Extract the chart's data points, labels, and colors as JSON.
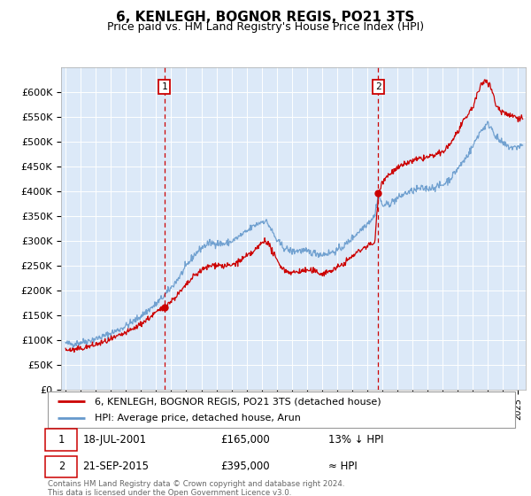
{
  "title": "6, KENLEGH, BOGNOR REGIS, PO21 3TS",
  "subtitle": "Price paid vs. HM Land Registry's House Price Index (HPI)",
  "ylabel_ticks": [
    "£0",
    "£50K",
    "£100K",
    "£150K",
    "£200K",
    "£250K",
    "£300K",
    "£350K",
    "£400K",
    "£450K",
    "£500K",
    "£550K",
    "£600K"
  ],
  "ytick_values": [
    0,
    50000,
    100000,
    150000,
    200000,
    250000,
    300000,
    350000,
    400000,
    450000,
    500000,
    550000,
    600000
  ],
  "ylim": [
    0,
    650000
  ],
  "xlim_start": 1994.7,
  "xlim_end": 2025.5,
  "background_color": "#dce9f8",
  "grid_color": "#ffffff",
  "sale1_x": 2001.54,
  "sale1_y": 165000,
  "sale1_label": "1",
  "sale1_date": "18-JUL-2001",
  "sale1_price": "£165,000",
  "sale1_hpi": "13% ↓ HPI",
  "sale2_x": 2015.73,
  "sale2_y": 395000,
  "sale2_label": "2",
  "sale2_date": "21-SEP-2015",
  "sale2_price": "£395,000",
  "sale2_hpi": "≈ HPI",
  "line_color_sale": "#cc0000",
  "line_color_hpi": "#6699cc",
  "legend_sale_label": "6, KENLEGH, BOGNOR REGIS, PO21 3TS (detached house)",
  "legend_hpi_label": "HPI: Average price, detached house, Arun",
  "footnote": "Contains HM Land Registry data © Crown copyright and database right 2024.\nThis data is licensed under the Open Government Licence v3.0.",
  "title_fontsize": 11,
  "subtitle_fontsize": 9,
  "blue_pts": [
    [
      1995.0,
      93000
    ],
    [
      1995.5,
      91000
    ],
    [
      1996.0,
      95000
    ],
    [
      1996.5,
      98000
    ],
    [
      1997.0,
      102000
    ],
    [
      1997.5,
      107000
    ],
    [
      1998.0,
      113000
    ],
    [
      1998.5,
      120000
    ],
    [
      1999.0,
      128000
    ],
    [
      1999.5,
      137000
    ],
    [
      2000.0,
      148000
    ],
    [
      2000.5,
      160000
    ],
    [
      2001.0,
      172000
    ],
    [
      2001.54,
      189000
    ],
    [
      2002.0,
      205000
    ],
    [
      2002.5,
      225000
    ],
    [
      2003.0,
      248000
    ],
    [
      2003.5,
      270000
    ],
    [
      2004.0,
      285000
    ],
    [
      2004.5,
      295000
    ],
    [
      2005.0,
      295000
    ],
    [
      2005.5,
      293000
    ],
    [
      2006.0,
      298000
    ],
    [
      2006.5,
      308000
    ],
    [
      2007.0,
      318000
    ],
    [
      2007.5,
      330000
    ],
    [
      2008.0,
      338000
    ],
    [
      2008.25,
      340000
    ],
    [
      2008.5,
      330000
    ],
    [
      2009.0,
      300000
    ],
    [
      2009.5,
      285000
    ],
    [
      2010.0,
      278000
    ],
    [
      2010.5,
      280000
    ],
    [
      2011.0,
      278000
    ],
    [
      2011.5,
      275000
    ],
    [
      2012.0,
      272000
    ],
    [
      2012.5,
      275000
    ],
    [
      2013.0,
      280000
    ],
    [
      2013.5,
      290000
    ],
    [
      2014.0,
      305000
    ],
    [
      2014.5,
      320000
    ],
    [
      2015.0,
      335000
    ],
    [
      2015.5,
      350000
    ],
    [
      2015.73,
      395000
    ],
    [
      2016.0,
      370000
    ],
    [
      2016.5,
      375000
    ],
    [
      2017.0,
      385000
    ],
    [
      2017.5,
      395000
    ],
    [
      2018.0,
      400000
    ],
    [
      2018.5,
      405000
    ],
    [
      2019.0,
      405000
    ],
    [
      2019.5,
      408000
    ],
    [
      2020.0,
      412000
    ],
    [
      2020.5,
      425000
    ],
    [
      2021.0,
      445000
    ],
    [
      2021.5,
      465000
    ],
    [
      2022.0,
      490000
    ],
    [
      2022.3,
      510000
    ],
    [
      2022.5,
      520000
    ],
    [
      2022.8,
      530000
    ],
    [
      2023.0,
      535000
    ],
    [
      2023.3,
      525000
    ],
    [
      2023.5,
      510000
    ],
    [
      2023.8,
      500000
    ],
    [
      2024.0,
      495000
    ],
    [
      2024.3,
      490000
    ],
    [
      2024.5,
      488000
    ],
    [
      2024.8,
      487000
    ],
    [
      2025.0,
      490000
    ],
    [
      2025.3,
      492000
    ]
  ],
  "red_pts": [
    [
      1995.0,
      80000
    ],
    [
      1995.5,
      79000
    ],
    [
      1996.0,
      82000
    ],
    [
      1996.5,
      86000
    ],
    [
      1997.0,
      90000
    ],
    [
      1997.5,
      95000
    ],
    [
      1998.0,
      100000
    ],
    [
      1998.5,
      107000
    ],
    [
      1999.0,
      114000
    ],
    [
      1999.5,
      122000
    ],
    [
      2000.0,
      132000
    ],
    [
      2000.5,
      143000
    ],
    [
      2001.0,
      155000
    ],
    [
      2001.54,
      165000
    ],
    [
      2002.0,
      178000
    ],
    [
      2002.5,
      193000
    ],
    [
      2003.0,
      210000
    ],
    [
      2003.5,
      228000
    ],
    [
      2004.0,
      240000
    ],
    [
      2004.5,
      248000
    ],
    [
      2005.0,
      252000
    ],
    [
      2005.5,
      248000
    ],
    [
      2006.0,
      250000
    ],
    [
      2006.5,
      258000
    ],
    [
      2007.0,
      268000
    ],
    [
      2007.5,
      278000
    ],
    [
      2008.0,
      295000
    ],
    [
      2008.25,
      302000
    ],
    [
      2008.5,
      290000
    ],
    [
      2009.0,
      260000
    ],
    [
      2009.5,
      240000
    ],
    [
      2010.0,
      235000
    ],
    [
      2010.5,
      238000
    ],
    [
      2011.0,
      240000
    ],
    [
      2011.5,
      238000
    ],
    [
      2012.0,
      233000
    ],
    [
      2012.5,
      238000
    ],
    [
      2013.0,
      245000
    ],
    [
      2013.5,
      255000
    ],
    [
      2014.0,
      268000
    ],
    [
      2014.5,
      280000
    ],
    [
      2015.0,
      290000
    ],
    [
      2015.5,
      295000
    ],
    [
      2015.73,
      395000
    ],
    [
      2016.0,
      420000
    ],
    [
      2016.5,
      435000
    ],
    [
      2017.0,
      445000
    ],
    [
      2017.5,
      455000
    ],
    [
      2018.0,
      460000
    ],
    [
      2018.5,
      465000
    ],
    [
      2019.0,
      468000
    ],
    [
      2019.5,
      472000
    ],
    [
      2020.0,
      478000
    ],
    [
      2020.5,
      495000
    ],
    [
      2021.0,
      520000
    ],
    [
      2021.5,
      545000
    ],
    [
      2022.0,
      570000
    ],
    [
      2022.3,
      595000
    ],
    [
      2022.5,
      610000
    ],
    [
      2022.8,
      625000
    ],
    [
      2023.0,
      620000
    ],
    [
      2023.3,
      600000
    ],
    [
      2023.5,
      575000
    ],
    [
      2023.8,
      562000
    ],
    [
      2024.0,
      560000
    ],
    [
      2024.3,
      555000
    ],
    [
      2024.5,
      553000
    ],
    [
      2024.8,
      550000
    ],
    [
      2025.0,
      548000
    ],
    [
      2025.3,
      547000
    ]
  ]
}
